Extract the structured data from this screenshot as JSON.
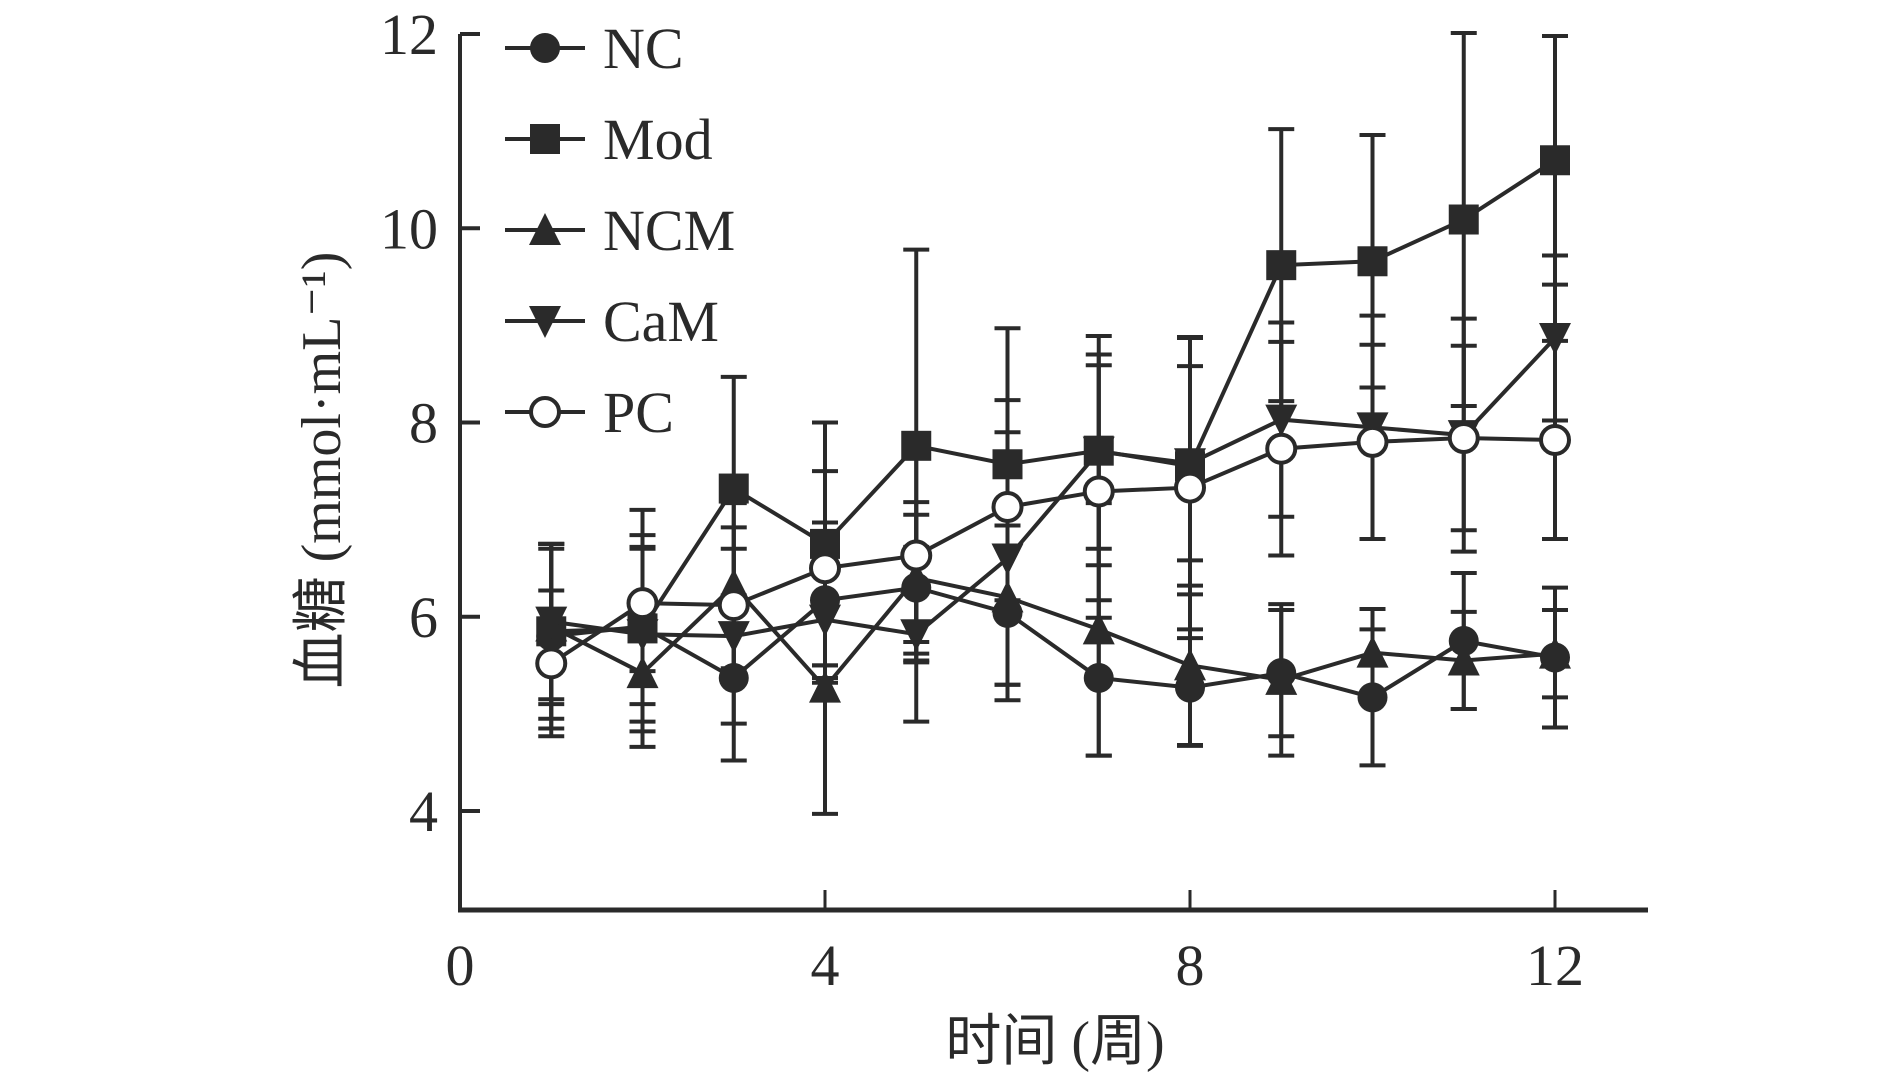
{
  "chart_data": {
    "type": "line",
    "title": "",
    "xlabel": "时间 (周)",
    "ylabel": "血糖 (mmol·mL⁻¹)",
    "xlim": [
      0,
      13
    ],
    "ylim": [
      3,
      12
    ],
    "xticks": [
      0,
      4,
      8,
      12
    ],
    "yticks": [
      4,
      6,
      8,
      10,
      12
    ],
    "xtick_labels": [
      "0",
      "4",
      "8",
      "12"
    ],
    "ytick_labels": [
      "4",
      "6",
      "8",
      "10",
      "12"
    ],
    "grid": false,
    "legend_position": "top-left",
    "x": [
      1,
      2,
      3,
      4,
      5,
      6,
      7,
      8,
      9,
      10,
      11,
      12
    ],
    "series": [
      {
        "name": "NC",
        "marker": "filled-circle",
        "values": [
          5.8,
          5.9,
          5.37,
          6.17,
          6.3,
          6.04,
          5.37,
          5.27,
          5.42,
          5.17,
          5.75,
          5.58
        ],
        "errors": [
          0.95,
          0.8,
          0.85,
          0.8,
          0.75,
          0.9,
          0.8,
          0.6,
          0.65,
          0.7,
          0.7,
          0.72
        ]
      },
      {
        "name": "Mod",
        "marker": "filled-square",
        "values": [
          5.85,
          5.88,
          7.32,
          6.75,
          7.76,
          7.57,
          7.71,
          7.55,
          9.62,
          9.66,
          10.09,
          10.7
        ],
        "errors": [
          0.9,
          1.22,
          1.15,
          1.25,
          2.02,
          1.4,
          1.18,
          1.32,
          1.4,
          1.3,
          1.92,
          1.28
        ]
      },
      {
        "name": "NCM",
        "marker": "filled-triangle-up",
        "values": [
          5.9,
          5.42,
          6.32,
          5.27,
          6.4,
          6.2,
          5.87,
          5.5,
          5.35,
          5.63,
          5.55,
          5.62
        ],
        "errors": [
          0.8,
          0.6,
          0.85,
          1.3,
          0.78,
          0.9,
          1.3,
          0.82,
          0.78,
          0.45,
          0.5,
          0.45
        ]
      },
      {
        "name": "CaM",
        "marker": "filled-triangle-down",
        "values": [
          5.95,
          5.82,
          5.8,
          5.97,
          5.82,
          6.6,
          7.7,
          7.58,
          8.03,
          7.95,
          7.87,
          8.87
        ],
        "errors": [
          0.8,
          0.9,
          0.9,
          0.65,
          0.9,
          1.3,
          1.0,
          1.0,
          1.0,
          1.15,
          1.2,
          0.85
        ]
      },
      {
        "name": "PC",
        "marker": "open-circle",
        "values": [
          5.52,
          6.14,
          6.12,
          6.5,
          6.63,
          7.13,
          7.29,
          7.33,
          7.73,
          7.8,
          7.84,
          7.82
        ],
        "errors": [
          0.75,
          0.7,
          0.8,
          1.0,
          1.1,
          1.1,
          1.3,
          1.55,
          1.1,
          1.0,
          0.95,
          1.02
        ]
      }
    ]
  },
  "colors": {
    "ink": "#2a2a2a",
    "background": "#ffffff"
  }
}
